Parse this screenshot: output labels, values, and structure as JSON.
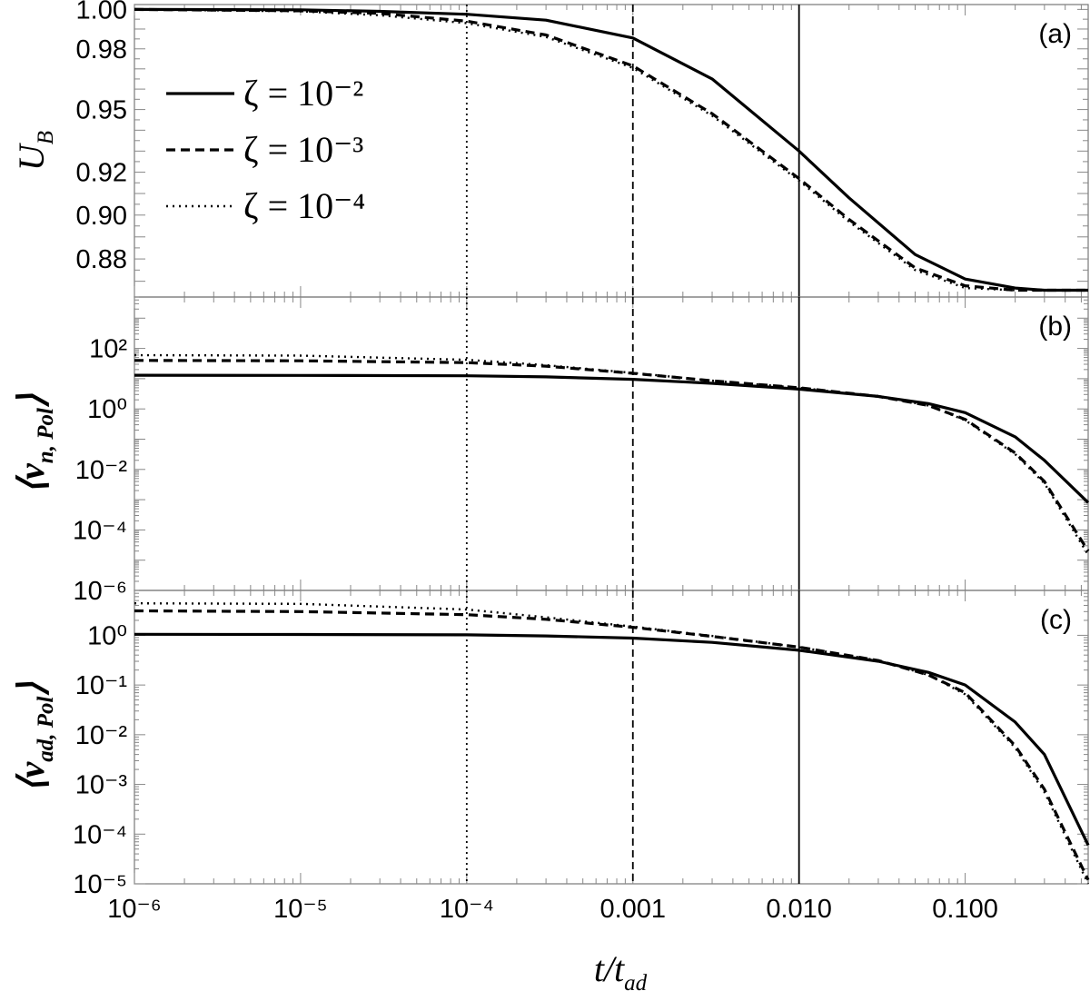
{
  "chart_data": {
    "type": "line",
    "x_scale": "log",
    "xlim": [
      1e-06,
      0.55
    ],
    "x_tick_labels": [
      "10⁻⁶",
      "10⁻⁵",
      "10⁻⁴",
      "0.001",
      "0.010",
      "0.100"
    ],
    "x_ticks": [
      1e-06,
      1e-05,
      0.0001,
      0.001,
      0.01,
      0.1
    ],
    "xlabel": "t/t_ad",
    "vertical_lines": [
      {
        "x": 0.0001,
        "style": "dotted"
      },
      {
        "x": 0.001,
        "style": "dashed"
      },
      {
        "x": 0.01,
        "style": "solid"
      }
    ],
    "legend": {
      "placement": "upper-left of panel (a)",
      "entries": [
        {
          "label": "ζ = 10⁻²",
          "style": "solid"
        },
        {
          "label": "ζ = 10⁻³",
          "style": "dashed"
        },
        {
          "label": "ζ = 10⁻⁴",
          "style": "dotted"
        }
      ]
    },
    "panels": [
      {
        "label": "(a)",
        "ylabel": "U_B",
        "y_scale": "log",
        "ylim": [
          0.863,
          1.0025
        ],
        "y_ticks": [
          1.0,
          0.98,
          0.95,
          0.92,
          0.9,
          0.88
        ],
        "y_tick_labels": [
          "1.00",
          "0.98",
          "0.95",
          "0.92",
          "0.90",
          "0.88"
        ],
        "x": [
          1e-06,
          1e-05,
          3e-05,
          0.0001,
          0.0003,
          0.001,
          0.003,
          0.01,
          0.02,
          0.05,
          0.1,
          0.2,
          0.3,
          0.55
        ],
        "series": [
          {
            "style": "solid",
            "values": [
              1.0,
              0.9998,
              0.999,
              0.9975,
              0.9945,
              0.9855,
              0.965,
              0.93,
              0.908,
              0.882,
              0.871,
              0.867,
              0.866,
              0.866
            ]
          },
          {
            "style": "dashed",
            "values": [
              1.0,
              0.9993,
              0.998,
              0.994,
              0.987,
              0.9715,
              0.948,
              0.917,
              0.898,
              0.876,
              0.868,
              0.866,
              0.866,
              0.866
            ]
          },
          {
            "style": "dotted",
            "values": [
              1.0,
              0.999,
              0.997,
              0.993,
              0.986,
              0.9705,
              0.947,
              0.916,
              0.897,
              0.875,
              0.867,
              0.866,
              0.866,
              0.866
            ]
          }
        ]
      },
      {
        "label": "(b)",
        "ylabel": "⟨v_{n, Pol}⟩",
        "y_scale": "log",
        "ylim": [
          1e-06,
          5000
        ],
        "y_ticks": [
          100,
          1,
          0.01,
          0.0001,
          1e-06
        ],
        "y_tick_labels": [
          "10²",
          "10⁰",
          "10⁻²",
          "10⁻⁴",
          "10⁻⁶"
        ],
        "x": [
          1e-06,
          1e-05,
          0.0001,
          0.0003,
          0.001,
          0.003,
          0.01,
          0.03,
          0.06,
          0.1,
          0.2,
          0.3,
          0.55
        ],
        "series": [
          {
            "style": "solid",
            "values": [
              13,
              12.8,
              12.5,
              11.5,
              9.5,
              7,
              4.5,
              2.6,
              1.5,
              0.75,
              0.12,
              0.02,
              0.0008
            ]
          },
          {
            "style": "dashed",
            "values": [
              40,
              39,
              34,
              26,
              15,
              8.5,
              5,
              2.6,
              1.3,
              0.45,
              0.035,
              0.004,
              2e-05
            ]
          },
          {
            "style": "dotted",
            "values": [
              60,
              58,
              42,
              28,
              15.5,
              8.6,
              5,
              2.6,
              1.3,
              0.42,
              0.032,
              0.0035,
              1.5e-05
            ]
          }
        ]
      },
      {
        "label": "(c)",
        "ylabel": "⟨v_{ad, Pol}⟩",
        "y_scale": "log",
        "ylim": [
          1e-05,
          8
        ],
        "y_ticks": [
          1,
          0.1,
          0.01,
          0.001,
          0.0001,
          1e-05
        ],
        "y_tick_labels": [
          "10⁰",
          "10⁻¹",
          "10⁻²",
          "10⁻³",
          "10⁻⁴",
          "10⁻⁵"
        ],
        "x": [
          1e-06,
          1e-05,
          0.0001,
          0.0003,
          0.001,
          0.003,
          0.01,
          0.03,
          0.06,
          0.1,
          0.2,
          0.3,
          0.55
        ],
        "series": [
          {
            "style": "solid",
            "values": [
              1.05,
              1.04,
              1.02,
              0.97,
              0.88,
              0.72,
              0.5,
              0.3,
              0.18,
              0.1,
              0.018,
              0.004,
              6e-05
            ]
          },
          {
            "style": "dashed",
            "values": [
              3.1,
              3.0,
              2.6,
              2.1,
              1.45,
              0.95,
              0.58,
              0.31,
              0.16,
              0.07,
              0.006,
              0.0008,
              1.2e-05
            ]
          },
          {
            "style": "dotted",
            "values": [
              4.4,
              4.3,
              3.3,
              2.3,
              1.5,
              0.97,
              0.58,
              0.31,
              0.16,
              0.065,
              0.0055,
              0.0007,
              1e-05
            ]
          }
        ]
      }
    ]
  }
}
